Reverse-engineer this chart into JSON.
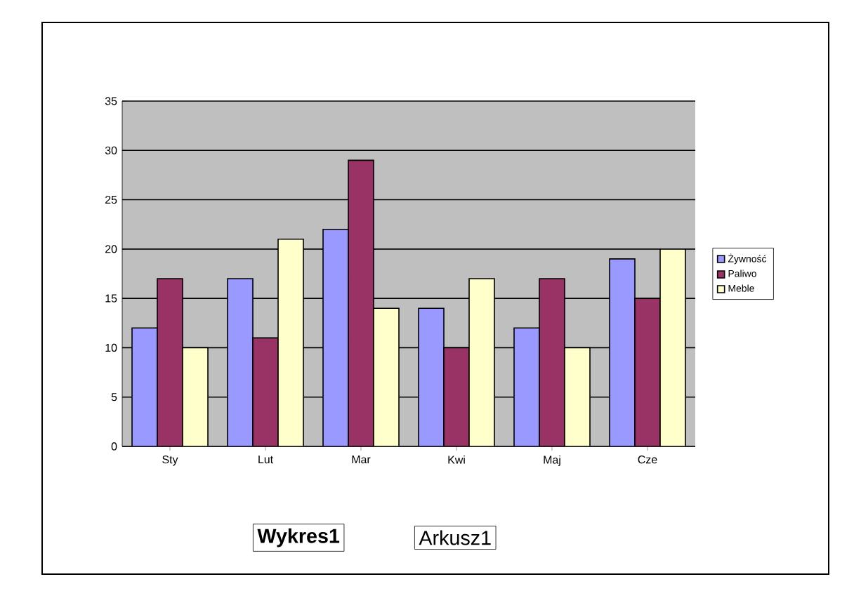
{
  "chart_data": {
    "type": "bar",
    "categories": [
      "Sty",
      "Lut",
      "Mar",
      "Kwi",
      "Maj",
      "Cze"
    ],
    "series": [
      {
        "name": "Żywność",
        "color": "#9999ff",
        "values": [
          12,
          17,
          22,
          14,
          12,
          19
        ]
      },
      {
        "name": "Paliwo",
        "color": "#993366",
        "values": [
          17,
          11,
          29,
          10,
          17,
          15
        ]
      },
      {
        "name": "Meble",
        "color": "#ffffcc",
        "values": [
          10,
          21,
          14,
          17,
          10,
          20
        ]
      }
    ],
    "ylim": [
      0,
      35
    ],
    "yticks": [
      0,
      5,
      10,
      15,
      20,
      25,
      30,
      35
    ],
    "grid": "y",
    "legend": "right",
    "annotations": [
      "Wykres1",
      "Arkusz1"
    ]
  }
}
